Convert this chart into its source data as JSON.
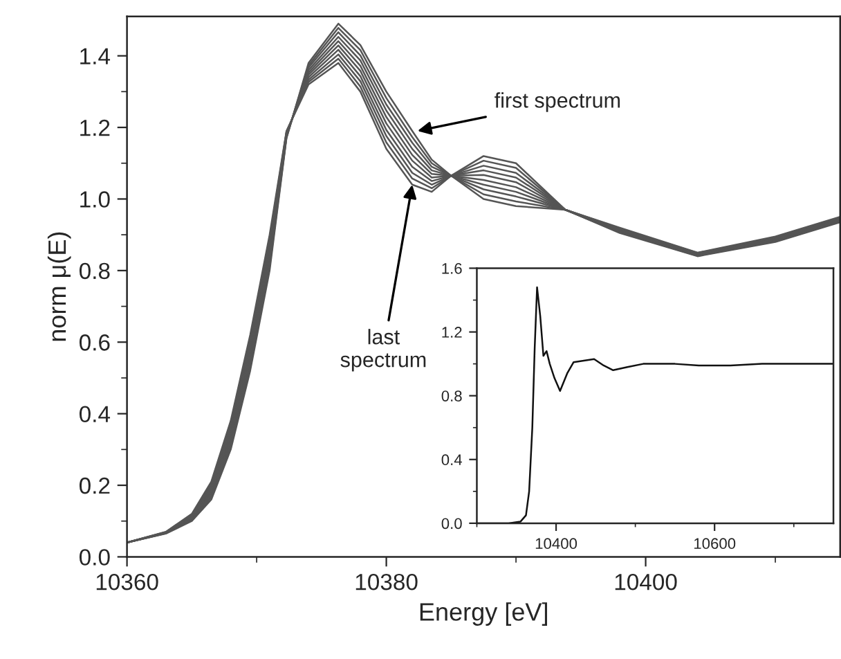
{
  "chart_data": [
    {
      "type": "line",
      "xlabel": "Energy [eV]",
      "ylabel": "norm μ(E)",
      "x": [
        10360,
        10363,
        10365,
        10366.5,
        10368,
        10369.5,
        10371,
        10372.3,
        10374,
        10376.3,
        10378,
        10380,
        10382,
        10383.5,
        10385,
        10387.5,
        10390,
        10393.8,
        10398,
        10404,
        10410,
        10415
      ],
      "series": [
        {
          "color": "#555555",
          "values": [
            0.04,
            0.065,
            0.1,
            0.16,
            0.3,
            0.52,
            0.8,
            1.17,
            1.38,
            1.49,
            1.43,
            1.3,
            1.19,
            1.11,
            1.065,
            1.0,
            0.98,
            0.97,
            0.905,
            0.84,
            0.88,
            0.935
          ]
        },
        {
          "color": "#555555",
          "values": [
            0.04,
            0.066,
            0.102,
            0.166,
            0.309,
            0.531,
            0.811,
            1.172,
            1.373,
            1.478,
            1.416,
            1.282,
            1.173,
            1.1,
            1.065,
            1.013,
            0.993,
            0.97,
            0.907,
            0.841,
            0.882,
            0.937
          ]
        },
        {
          "color": "#555555",
          "values": [
            0.04,
            0.066,
            0.104,
            0.171,
            0.318,
            0.542,
            0.822,
            1.174,
            1.367,
            1.466,
            1.401,
            1.264,
            1.157,
            1.09,
            1.065,
            1.027,
            1.007,
            0.97,
            0.908,
            0.842,
            0.883,
            0.938
          ]
        },
        {
          "color": "#555555",
          "values": [
            0.04,
            0.067,
            0.107,
            0.177,
            0.327,
            0.553,
            0.833,
            1.177,
            1.36,
            1.453,
            1.387,
            1.247,
            1.14,
            1.08,
            1.065,
            1.04,
            1.02,
            0.97,
            0.91,
            0.843,
            0.885,
            0.94
          ]
        },
        {
          "color": "#555555",
          "values": [
            0.04,
            0.067,
            0.109,
            0.182,
            0.336,
            0.564,
            0.844,
            1.179,
            1.353,
            1.441,
            1.372,
            1.229,
            1.123,
            1.07,
            1.065,
            1.053,
            1.033,
            0.97,
            0.912,
            0.844,
            0.887,
            0.942
          ]
        },
        {
          "color": "#555555",
          "values": [
            0.04,
            0.068,
            0.111,
            0.188,
            0.344,
            0.576,
            0.856,
            1.181,
            1.347,
            1.429,
            1.358,
            1.211,
            1.107,
            1.06,
            1.065,
            1.067,
            1.047,
            0.97,
            0.913,
            0.846,
            0.888,
            0.943
          ]
        },
        {
          "color": "#555555",
          "values": [
            0.04,
            0.068,
            0.113,
            0.193,
            0.353,
            0.587,
            0.867,
            1.183,
            1.34,
            1.417,
            1.343,
            1.193,
            1.09,
            1.05,
            1.065,
            1.08,
            1.06,
            0.97,
            0.915,
            0.847,
            0.89,
            0.945
          ]
        },
        {
          "color": "#555555",
          "values": [
            0.04,
            0.069,
            0.116,
            0.199,
            0.362,
            0.598,
            0.878,
            1.186,
            1.333,
            1.404,
            1.329,
            1.176,
            1.073,
            1.04,
            1.065,
            1.093,
            1.073,
            0.97,
            0.917,
            0.848,
            0.892,
            0.947
          ]
        },
        {
          "color": "#555555",
          "values": [
            0.04,
            0.069,
            0.118,
            0.204,
            0.371,
            0.609,
            0.889,
            1.188,
            1.327,
            1.392,
            1.314,
            1.158,
            1.057,
            1.03,
            1.065,
            1.107,
            1.087,
            0.97,
            0.918,
            0.849,
            0.893,
            0.948
          ]
        },
        {
          "color": "#555555",
          "values": [
            0.04,
            0.07,
            0.12,
            0.21,
            0.38,
            0.62,
            0.9,
            1.19,
            1.32,
            1.38,
            1.3,
            1.14,
            1.04,
            1.02,
            1.065,
            1.12,
            1.1,
            0.97,
            0.92,
            0.85,
            0.895,
            0.95
          ]
        }
      ],
      "xlim": [
        10360,
        10415
      ],
      "xticks": [
        10360,
        {
          "value": 10370,
          "label": null
        },
        10380,
        {
          "value": 10390,
          "label": null
        },
        10400,
        {
          "value": 10410,
          "label": null
        }
      ],
      "ylim": [
        0,
        1.51
      ],
      "yticks": [
        {
          "value": 0,
          "label": "0.0"
        },
        {
          "value": 0.1,
          "label": null
        },
        0.2,
        {
          "value": 0.3,
          "label": null
        },
        0.4,
        {
          "value": 0.5,
          "label": null
        },
        0.6,
        {
          "value": 0.7,
          "label": null
        },
        0.8,
        {
          "value": 0.9,
          "label": null
        },
        {
          "value": 1,
          "label": "1.0"
        },
        {
          "value": 1.1,
          "label": null
        },
        1.2,
        {
          "value": 1.3,
          "label": null
        },
        1.4
      ],
      "annotations": [
        {
          "text": "first spectrum",
          "x": 10382.4,
          "y": 1.19
        },
        {
          "text": "last\nspectrum",
          "x": 10382,
          "y": 1.04
        }
      ]
    },
    {
      "type": "line",
      "x": [
        10300,
        10340,
        10355,
        10362,
        10366,
        10370,
        10373,
        10376,
        10380,
        10384,
        10388,
        10392,
        10398,
        10405,
        10414,
        10422,
        10435,
        10448,
        10460,
        10472,
        10490,
        10510,
        10550,
        10580,
        10620,
        10660,
        10750
      ],
      "series": [
        {
          "color": "#111111",
          "values": [
            0,
            0,
            0.01,
            0.05,
            0.2,
            0.6,
            1.1,
            1.48,
            1.3,
            1.05,
            1.08,
            1.0,
            0.91,
            0.83,
            0.94,
            1.01,
            1.02,
            1.03,
            0.99,
            0.96,
            0.98,
            1.0,
            1.0,
            0.99,
            0.99,
            1.0,
            1.0
          ]
        }
      ],
      "xlim": [
        10300,
        10750
      ],
      "xticks": [
        {
          "value": 10300,
          "label": null
        },
        10400,
        {
          "value": 10500,
          "label": null
        },
        10600,
        {
          "value": 10700,
          "label": null
        }
      ],
      "ylim": [
        0,
        1.6
      ],
      "yticks": [
        {
          "value": 0,
          "label": "0.0"
        },
        {
          "value": 0.2,
          "label": null
        },
        0.4,
        {
          "value": 0.6,
          "label": null
        },
        0.8,
        {
          "value": 1.0,
          "label": null
        },
        1.2,
        {
          "value": 1.4,
          "label": null
        },
        1.6
      ]
    }
  ]
}
